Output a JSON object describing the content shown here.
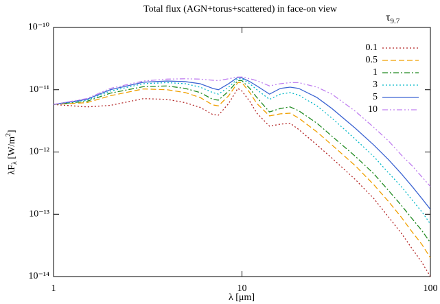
{
  "chart_data": {
    "type": "line",
    "title": "Total flux (AGN+torus+scattered) in face-on view",
    "x_label": "λ [μm]",
    "y_label": [
      "λF",
      "λ",
      " [W/m",
      "2",
      "]"
    ],
    "legend_title": [
      "τ",
      "9.7"
    ],
    "legend": "top-right",
    "xscale": "log",
    "yscale": "log",
    "xlim": [
      1,
      100
    ],
    "xticks": [
      1,
      10,
      100
    ],
    "ylim": [
      1e-14,
      1e-10
    ],
    "yticks": [
      {
        "value": 1e-14,
        "label": "10⁻¹⁴"
      },
      {
        "value": 1e-13,
        "label": "10⁻¹³"
      },
      {
        "value": 1e-12,
        "label": "10⁻¹²"
      },
      {
        "value": 1e-11,
        "label": "10⁻¹¹"
      },
      {
        "value": 1e-10,
        "label": "10⁻¹⁰"
      }
    ],
    "x": [
      1,
      1.5,
      2,
      3,
      4,
      5,
      6,
      7,
      7.5,
      8.5,
      9.5,
      10,
      11,
      12,
      14,
      16,
      18,
      20,
      25,
      30,
      40,
      50,
      60,
      70,
      80,
      90,
      100
    ],
    "series": [
      {
        "name": "0.1",
        "color": "#b22222",
        "line_style": "dotted",
        "values": [
          5.8e-12,
          5.3e-12,
          5.6e-12,
          7.2e-12,
          7e-12,
          6.2e-12,
          5.2e-12,
          4e-12,
          3.9e-12,
          6e-12,
          1.05e-11,
          9.5e-12,
          6.5e-12,
          4.2e-12,
          2.6e-12,
          2.8e-12,
          2.9e-12,
          2.3e-12,
          1.3e-12,
          8e-13,
          3.6e-13,
          1.8e-13,
          9e-14,
          5e-14,
          2.8e-14,
          1.7e-14,
          1e-14
        ]
      },
      {
        "name": "0.5",
        "color": "#f0a000",
        "line_style": "dashed",
        "values": [
          5.8e-12,
          6.2e-12,
          8e-12,
          1.03e-11,
          1e-11,
          9e-12,
          7.5e-12,
          5.7e-12,
          5.5e-12,
          8e-12,
          1.3e-11,
          1.3e-11,
          9e-12,
          6e-12,
          3.8e-12,
          4.1e-12,
          4.2e-12,
          3.5e-12,
          2.1e-12,
          1.3e-12,
          6e-13,
          3e-13,
          1.6e-13,
          9e-14,
          5.2e-14,
          3.3e-14,
          2e-14
        ]
      },
      {
        "name": "1",
        "color": "#228b22",
        "line_style": "dashdot",
        "values": [
          5.8e-12,
          6.5e-12,
          8.8e-12,
          1.12e-11,
          1.15e-11,
          1.05e-11,
          9e-12,
          7e-12,
          6.8e-12,
          9.5e-12,
          1.4e-11,
          1.4e-11,
          1.05e-11,
          7.5e-12,
          4.4e-12,
          5e-12,
          5.3e-12,
          4.6e-12,
          2.9e-12,
          1.8e-12,
          8.5e-13,
          4.5e-13,
          2.4e-13,
          1.4e-13,
          8.5e-14,
          5.5e-14,
          3.5e-14
        ]
      },
      {
        "name": "3",
        "color": "#00b8c8",
        "line_style": "dotted",
        "values": [
          5.8e-12,
          6.8e-12,
          9.5e-12,
          1.25e-11,
          1.3e-11,
          1.25e-11,
          1.1e-11,
          9e-12,
          8.5e-12,
          1.1e-11,
          1.5e-11,
          1.5e-11,
          1.25e-11,
          1e-11,
          7e-12,
          8.5e-12,
          9e-12,
          8.2e-12,
          5.5e-12,
          3.5e-12,
          1.6e-12,
          8.5e-13,
          4.6e-13,
          2.8e-13,
          1.7e-13,
          1.1e-13,
          7e-14
        ]
      },
      {
        "name": "5",
        "color": "#3c64d2",
        "line_style": "solid",
        "values": [
          5.8e-12,
          7e-12,
          1e-11,
          1.32e-11,
          1.38e-11,
          1.35e-11,
          1.25e-11,
          1.05e-11,
          1e-11,
          1.25e-11,
          1.58e-11,
          1.55e-11,
          1.35e-11,
          1.15e-11,
          8.5e-12,
          1.05e-11,
          1.1e-11,
          1.05e-11,
          7.5e-12,
          5e-12,
          2.4e-12,
          1.3e-12,
          7.5e-13,
          4.5e-13,
          2.8e-13,
          1.8e-13,
          1.2e-13
        ]
      },
      {
        "name": "10",
        "color": "#c080f0",
        "line_style": "dashdotdot",
        "values": [
          5.8e-12,
          7.2e-12,
          1.05e-11,
          1.38e-11,
          1.48e-11,
          1.5e-11,
          1.48e-11,
          1.42e-11,
          1.4e-11,
          1.5e-11,
          1.6e-11,
          1.6e-11,
          1.5e-11,
          1.4e-11,
          1.15e-11,
          1.25e-11,
          1.3e-11,
          1.3e-11,
          1.1e-11,
          8.5e-12,
          4.5e-12,
          2.5e-12,
          1.5e-12,
          9e-13,
          6e-13,
          4e-13,
          2.8e-13
        ]
      }
    ]
  }
}
